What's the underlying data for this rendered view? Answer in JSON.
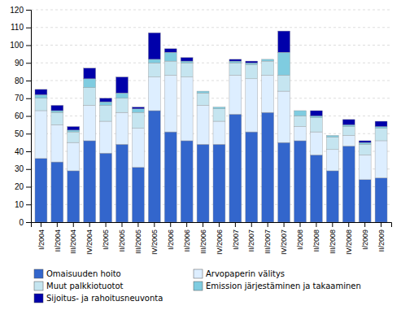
{
  "chart_data": {
    "type": "bar",
    "stacked": true,
    "grid": true,
    "legend": "bottom",
    "categories": [
      "I/2004",
      "II/2004",
      "III/2004",
      "IV/2004",
      "I/2005",
      "II/2005",
      "III/2005",
      "IV/2005",
      "I/2006",
      "II/2006",
      "III/2006",
      "IV/2006",
      "I/2007",
      "II/2007",
      "III/2007",
      "IV/2007",
      "I/2008",
      "II/2008",
      "III/2008",
      "IV/2008",
      "I/2009",
      "II/2009"
    ],
    "series": [
      {
        "name": "Omaisuuden hoito",
        "color": "#3366CC",
        "values": [
          36,
          34,
          29,
          46,
          39,
          44,
          31,
          63,
          51,
          46,
          44,
          44,
          61,
          51,
          62,
          45,
          46,
          38,
          29,
          43,
          24,
          25
        ]
      },
      {
        "name": "Arvopaperin välitys",
        "color": "#DDEEFF",
        "values": [
          27,
          21,
          16,
          20,
          18,
          18,
          22,
          19,
          32,
          36,
          22,
          13,
          22,
          30,
          21,
          29,
          8,
          13,
          12,
          6,
          14,
          21
        ]
      },
      {
        "name": "Muut palkkiotuotot",
        "color": "#C5E5F0",
        "values": [
          7,
          7,
          6,
          10,
          9,
          8,
          9,
          8,
          8,
          8,
          7,
          7,
          7,
          8,
          8,
          9,
          6,
          8,
          7,
          5,
          6,
          7
        ]
      },
      {
        "name": "Emission järjestäminen ja takaaminen",
        "color": "#7FCCE0",
        "values": [
          2,
          1,
          1,
          5,
          2,
          3,
          2,
          2,
          5,
          1,
          1,
          1,
          1,
          1,
          1,
          13,
          3,
          1,
          1,
          1,
          1,
          1
        ]
      },
      {
        "name": "Sijoitus- ja rahoitusneuvonta",
        "color": "#0000AA",
        "values": [
          3,
          3,
          2,
          6,
          2,
          9,
          1,
          15,
          2,
          2,
          0,
          0,
          1,
          1,
          0,
          12,
          0,
          3,
          0,
          3,
          1,
          3
        ]
      }
    ],
    "ylim": [
      0,
      120
    ],
    "yticks": [
      0,
      10,
      20,
      30,
      40,
      50,
      60,
      70,
      80,
      90,
      100,
      110,
      120
    ]
  }
}
